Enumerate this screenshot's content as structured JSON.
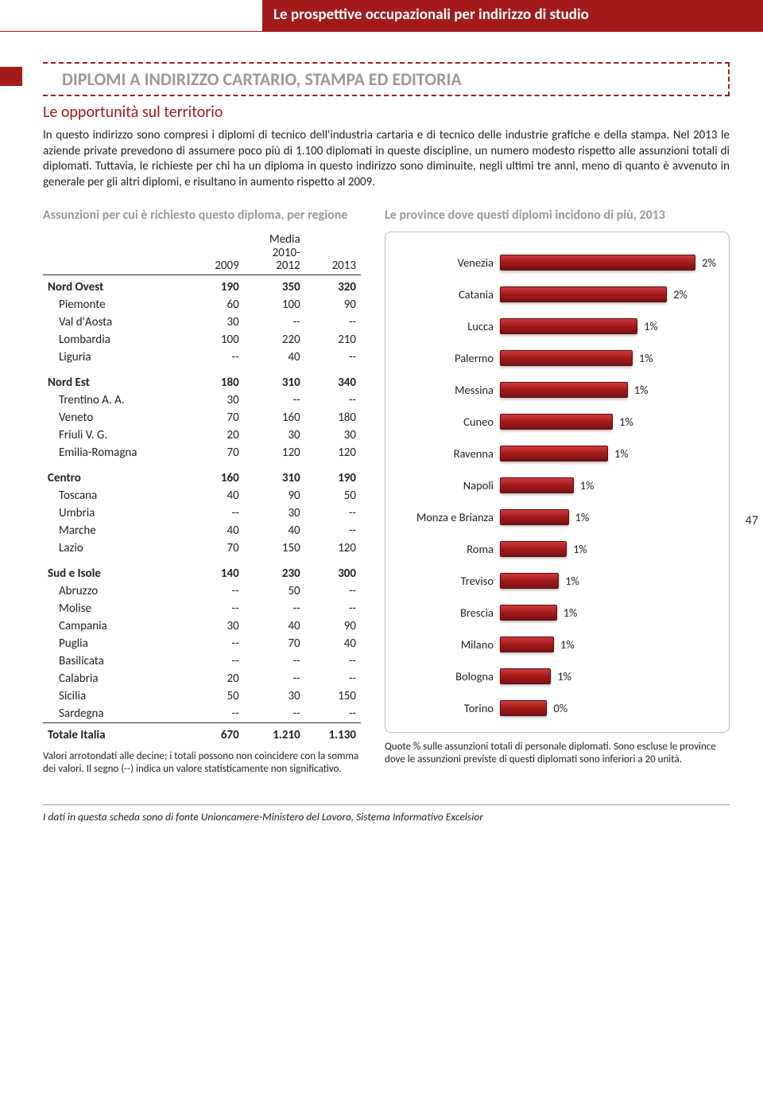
{
  "header": {
    "title": "Le prospettive occupazionali per indirizzo di studio",
    "page_number": "47"
  },
  "section": {
    "dashed_title": "DIPLOMI A INDIRIZZO CARTARIO, STAMPA ED EDITORIA",
    "subheading": "Le opportunità sul territorio",
    "paragraph": "In questo indirizzo sono compresi i diplomi di tecnico dell'industria cartaria e di tecnico delle industrie grafiche e della stampa. Nel 2013 le aziende private prevedono di assumere poco più di 1.100 diplomati in queste discipline, un numero modesto rispetto alle assunzioni totali di diplomati. Tuttavia, le richieste per chi ha un diploma in questo indirizzo sono diminuite, negli ultimi tre anni, meno di quanto è avvenuto in generale per gli altri diplomi, e risultano in aumento rispetto al 2009."
  },
  "table": {
    "title": "Assunzioni per cui è richiesto questo diploma, per regione",
    "columns": [
      "",
      "2009",
      "Media 2010-2012",
      "2013"
    ],
    "groups": [
      {
        "label": "Nord Ovest",
        "v": [
          "190",
          "350",
          "320"
        ],
        "rows": [
          {
            "label": "Piemonte",
            "v": [
              "60",
              "100",
              "90"
            ]
          },
          {
            "label": "Val d'Aosta",
            "v": [
              "30",
              "--",
              "--"
            ]
          },
          {
            "label": "Lombardia",
            "v": [
              "100",
              "220",
              "210"
            ]
          },
          {
            "label": "Liguria",
            "v": [
              "--",
              "40",
              "--"
            ]
          }
        ]
      },
      {
        "label": "Nord Est",
        "v": [
          "180",
          "310",
          "340"
        ],
        "rows": [
          {
            "label": "Trentino A. A.",
            "v": [
              "30",
              "--",
              "--"
            ]
          },
          {
            "label": "Veneto",
            "v": [
              "70",
              "160",
              "180"
            ]
          },
          {
            "label": "Friuli V. G.",
            "v": [
              "20",
              "30",
              "30"
            ]
          },
          {
            "label": "Emilia-Romagna",
            "v": [
              "70",
              "120",
              "120"
            ]
          }
        ]
      },
      {
        "label": "Centro",
        "v": [
          "160",
          "310",
          "190"
        ],
        "rows": [
          {
            "label": "Toscana",
            "v": [
              "40",
              "90",
              "50"
            ]
          },
          {
            "label": "Umbria",
            "v": [
              "--",
              "30",
              "--"
            ]
          },
          {
            "label": "Marche",
            "v": [
              "40",
              "40",
              "--"
            ]
          },
          {
            "label": "Lazio",
            "v": [
              "70",
              "150",
              "120"
            ]
          }
        ]
      },
      {
        "label": "Sud e Isole",
        "v": [
          "140",
          "230",
          "300"
        ],
        "rows": [
          {
            "label": "Abruzzo",
            "v": [
              "--",
              "50",
              "--"
            ]
          },
          {
            "label": "Molise",
            "v": [
              "--",
              "--",
              "--"
            ]
          },
          {
            "label": "Campania",
            "v": [
              "30",
              "40",
              "90"
            ]
          },
          {
            "label": "Puglia",
            "v": [
              "--",
              "70",
              "40"
            ]
          },
          {
            "label": "Basilicata",
            "v": [
              "--",
              "--",
              "--"
            ]
          },
          {
            "label": "Calabria",
            "v": [
              "20",
              "--",
              "--"
            ]
          },
          {
            "label": "Sicilia",
            "v": [
              "50",
              "30",
              "150"
            ]
          },
          {
            "label": "Sardegna",
            "v": [
              "--",
              "--",
              "--"
            ]
          }
        ]
      }
    ],
    "total": {
      "label": "Totale Italia",
      "v": [
        "670",
        "1.210",
        "1.130"
      ]
    },
    "footnote": "Valori arrotondati alle decine; i totali possono non coincidere con la somma dei valori. Il segno (--) indica un valore statisticamente non significativo."
  },
  "chart": {
    "title": "Le province dove questi diplomi incidono di più, 2013",
    "type": "bar",
    "bar_color_top": "#d03a3a",
    "bar_color_mid": "#a31a1a",
    "bar_color_bottom": "#7e1212",
    "max_value": 2.2,
    "items": [
      {
        "label": "Venezia",
        "value": 2.0,
        "display": "2%"
      },
      {
        "label": "Catania",
        "value": 1.7,
        "display": "2%"
      },
      {
        "label": "Lucca",
        "value": 1.4,
        "display": "1%"
      },
      {
        "label": "Palermo",
        "value": 1.35,
        "display": "1%"
      },
      {
        "label": "Messina",
        "value": 1.3,
        "display": "1%"
      },
      {
        "label": "Cuneo",
        "value": 1.15,
        "display": "1%"
      },
      {
        "label": "Ravenna",
        "value": 1.1,
        "display": "1%"
      },
      {
        "label": "Napoli",
        "value": 0.75,
        "display": "1%"
      },
      {
        "label": "Monza e Brianza",
        "value": 0.7,
        "display": "1%"
      },
      {
        "label": "Roma",
        "value": 0.68,
        "display": "1%"
      },
      {
        "label": "Treviso",
        "value": 0.6,
        "display": "1%"
      },
      {
        "label": "Brescia",
        "value": 0.58,
        "display": "1%"
      },
      {
        "label": "Milano",
        "value": 0.55,
        "display": "1%"
      },
      {
        "label": "Bologna",
        "value": 0.52,
        "display": "1%"
      },
      {
        "label": "Torino",
        "value": 0.48,
        "display": "0%"
      }
    ],
    "footnote": "Quote % sulle assunzioni totali di personale diplomati. Sono escluse le province dove le assunzioni previste di questi diplomati sono inferiori a 20 unità."
  },
  "source": "I dati in questa scheda sono di fonte Unioncamere-Ministero del Lavoro, Sistema Informativo Excelsior"
}
